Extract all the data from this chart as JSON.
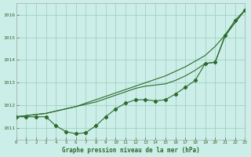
{
  "background_color": "#cceee8",
  "grid_color": "#99ccbb",
  "line_color": "#2d6a2d",
  "xlabel": "Graphe pression niveau de la mer (hPa)",
  "xlim": [
    0,
    23
  ],
  "ylim": [
    1010.5,
    1016.5
  ],
  "yticks": [
    1011,
    1012,
    1013,
    1014,
    1015,
    1016
  ],
  "xticks": [
    0,
    1,
    2,
    3,
    4,
    5,
    6,
    7,
    8,
    9,
    10,
    11,
    12,
    13,
    14,
    15,
    16,
    17,
    18,
    19,
    20,
    21,
    22,
    23
  ],
  "top_y": [
    1011.5,
    1011.55,
    1011.6,
    1011.65,
    1011.75,
    1011.85,
    1011.95,
    1012.1,
    1012.25,
    1012.4,
    1012.55,
    1012.7,
    1012.85,
    1013.0,
    1013.15,
    1013.3,
    1013.5,
    1013.7,
    1013.95,
    1014.2,
    1014.6,
    1015.1,
    1015.65,
    1016.2
  ],
  "mid_y": [
    1011.5,
    1011.55,
    1011.6,
    1011.65,
    1011.75,
    1011.85,
    1011.95,
    1012.05,
    1012.15,
    1012.3,
    1012.45,
    1012.6,
    1012.75,
    1012.85,
    1012.9,
    1012.95,
    1013.1,
    1013.3,
    1013.55,
    1013.85,
    1013.9,
    1015.05,
    1015.65,
    1016.2
  ],
  "bot_y": [
    1011.5,
    1011.5,
    1011.5,
    1011.5,
    1011.1,
    1010.85,
    1010.75,
    1010.8,
    1011.1,
    1011.5,
    1011.85,
    1012.1,
    1012.25,
    1012.25,
    1012.2,
    1012.25,
    1012.5,
    1012.8,
    1013.1,
    1013.85,
    1013.9,
    1015.1,
    1015.75,
    1016.2
  ]
}
